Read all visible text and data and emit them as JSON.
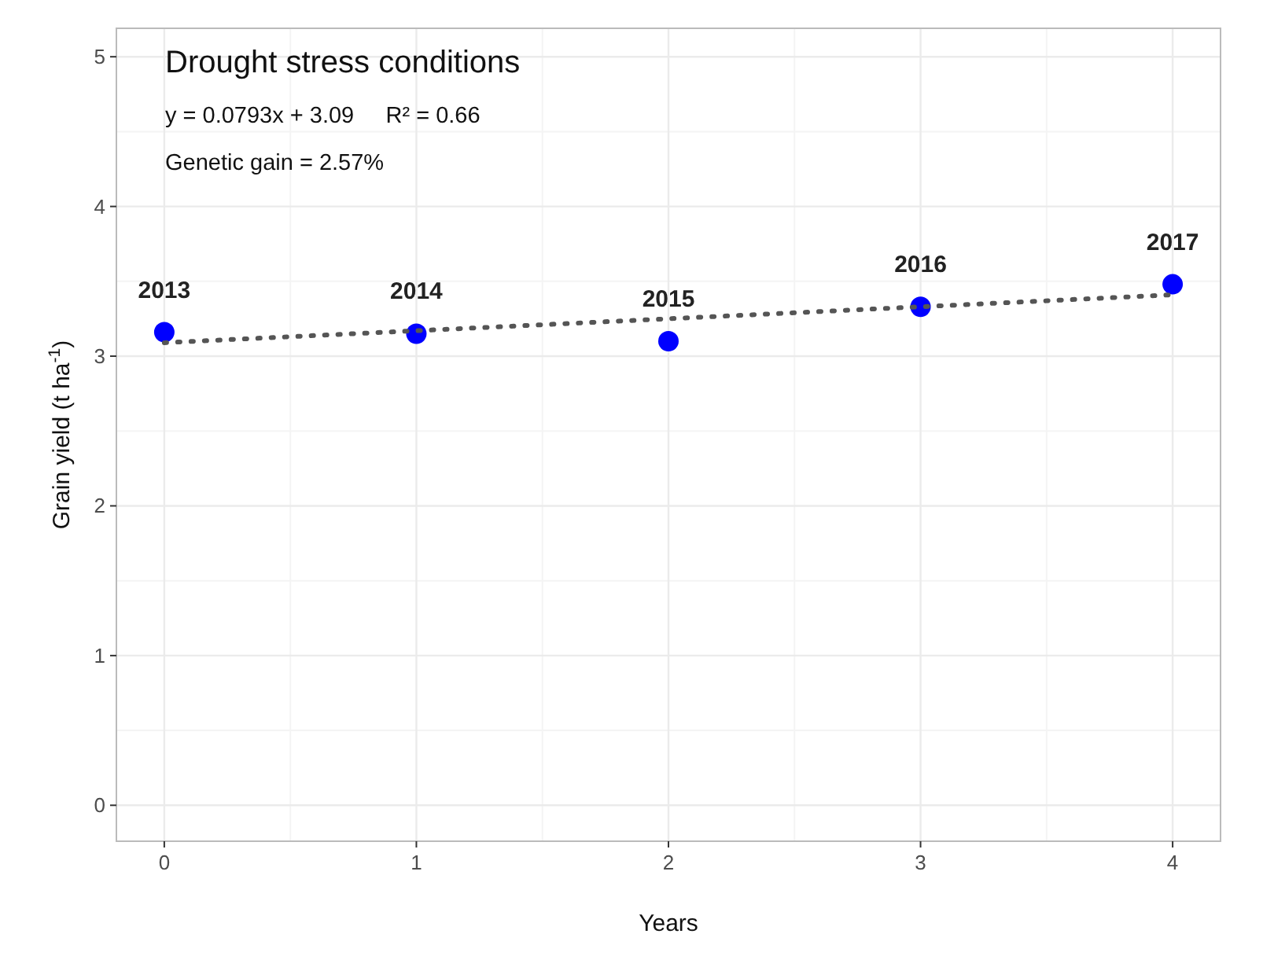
{
  "chart_data": {
    "type": "scatter",
    "title": "Drought stress conditions",
    "xlabel": "Years",
    "ylabel": "Grain yield (t ha$^{-1}$)",
    "annotations": [
      "y = 0.0793x + 3.09     R² = 0.66",
      "Genetic gain = 2.57%",
      {
        "text": "2013",
        "x": 0,
        "y": 3.16
      },
      {
        "text": "2014",
        "x": 1,
        "y": 3.15
      },
      {
        "text": "2015",
        "x": 2,
        "y": 3.1
      },
      {
        "text": "2016",
        "x": 3,
        "y": 3.33
      },
      {
        "text": "2017",
        "x": 4,
        "y": 3.48
      }
    ],
    "series": [
      {
        "color": "#0000ff",
        "x": [
          0,
          1,
          2,
          3,
          4
        ],
        "values": [
          3.16,
          3.15,
          3.1,
          3.33,
          3.48
        ],
        "marker": "circle"
      },
      {
        "type": "line",
        "color": "#555555",
        "x": [
          0,
          4
        ],
        "values": [
          3.09,
          3.41
        ],
        "line_style": "dotted",
        "marker": "none"
      }
    ],
    "xlim": [
      -0.19,
      4.19
    ],
    "ylim": [
      -0.24,
      5.19
    ],
    "xticks": [
      0,
      1,
      2,
      3,
      4
    ],
    "yticks": [
      0,
      1,
      2,
      3,
      4,
      5
    ],
    "grid": true
  }
}
